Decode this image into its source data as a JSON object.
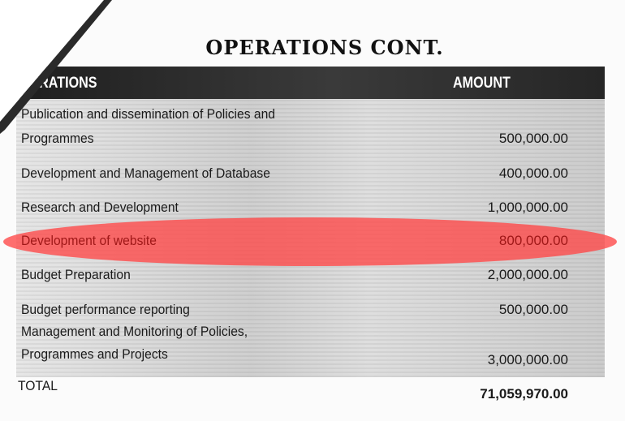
{
  "title": "OPERATIONS CONT.",
  "table": {
    "header": [
      "OPERATIONS",
      "AMOUNT"
    ],
    "rows": [
      {
        "lines": [
          "Publication and dissemination of Policies and",
          "Programmes"
        ],
        "amount": "500,000.00"
      },
      {
        "lines": [
          "Development and Management of Database"
        ],
        "amount": "400,000.00"
      },
      {
        "lines": [
          "Research and Development"
        ],
        "amount": "1,000,000.00"
      },
      {
        "lines": [
          "Development of website"
        ],
        "amount": "800,000.00"
      },
      {
        "lines": [
          "Budget Preparation"
        ],
        "amount": "2,000,000.00"
      },
      {
        "lines": [
          "Budget performance reporting"
        ],
        "amount": "500,000.00"
      },
      {
        "lines": [
          "Management and Monitoring of Policies,",
          "Programmes and Projects"
        ],
        "amount": "3,000,000.00"
      }
    ],
    "total": {
      "label": "TOTAL",
      "amount": "71,059,970.00"
    }
  }
}
